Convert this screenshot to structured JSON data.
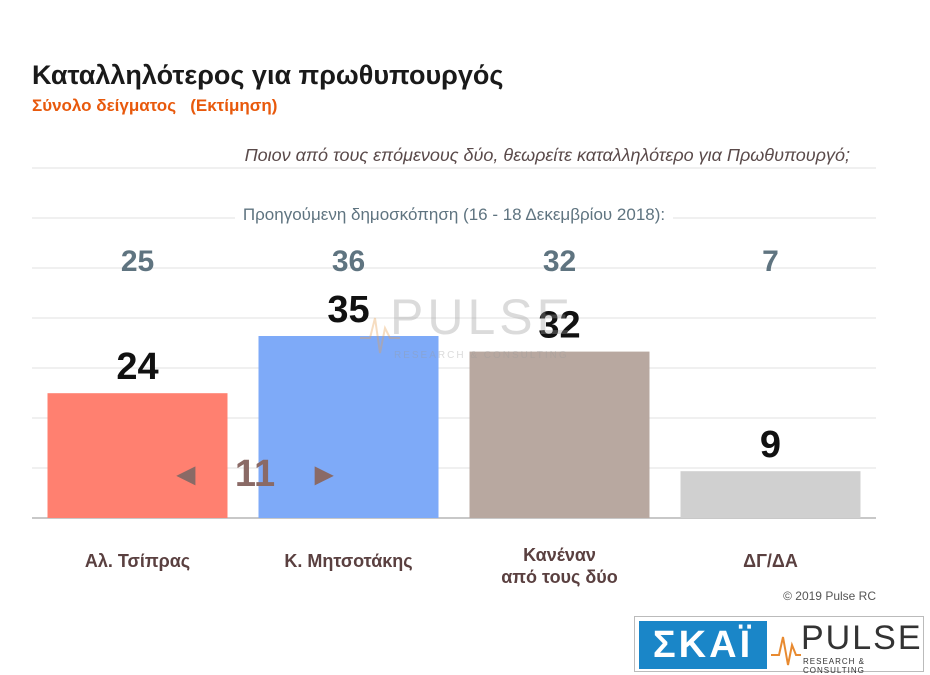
{
  "header": {
    "title": "Καταλληλότερος για πρωθυπουργός",
    "subtitle": "Σύνολο δείγματος   (Εκτίμηση)",
    "question": "Ποιον από τους επόμενους δύο, θεωρείτε καταλληλότερο για Πρωθυπουργό;",
    "previous_label": "Προηγούμενη δημοσκόπηση (16 - 18 Δεκεμβρίου 2018):"
  },
  "chart_data": {
    "type": "bar",
    "categories": [
      "Αλ. Τσίπρας",
      "Κ. Μητσοτάκης",
      "Κανέναν\nαπό τους δύο",
      "ΔΓ/ΔΑ"
    ],
    "values": [
      24,
      35,
      32,
      9
    ],
    "previous_values": [
      25,
      36,
      32,
      7
    ],
    "colors": [
      "#ff8070",
      "#7eaaf8",
      "#b8a8a0",
      "#d0d0d0"
    ],
    "ylim": [
      0,
      50
    ],
    "grid": true,
    "annotation": {
      "arrow_left": "◄",
      "value": "11",
      "arrow_right": "►"
    }
  },
  "footer": {
    "copyright": "© 2019 Pulse RC"
  },
  "watermark": {
    "brand": "PULSE",
    "tagline": "RESEARCH & CONSULTING"
  },
  "logos": {
    "channel": "ΣΚΑΪ",
    "brand": "PULSE",
    "tagline": "RESEARCH & CONSULTING"
  }
}
